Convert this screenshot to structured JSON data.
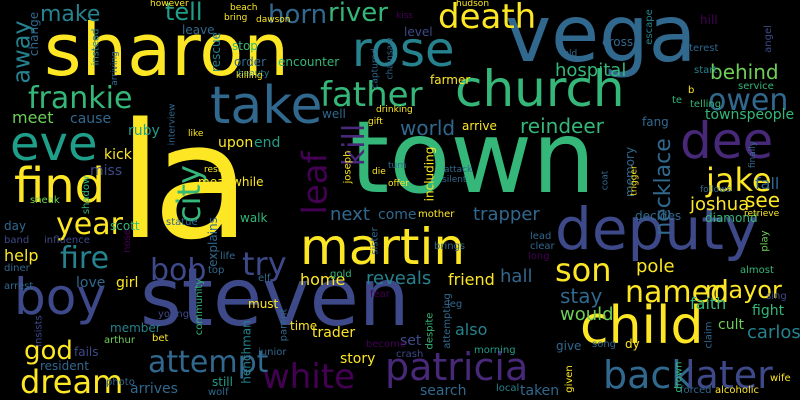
{
  "cloud": {
    "colors": {
      "yellow": "#fde725",
      "yellow_green": "#b5de2b",
      "light_green": "#6ece58",
      "green": "#35b779",
      "teal_green": "#1f9e89",
      "teal": "#26828e",
      "blue": "#31688e",
      "indigo": "#3e4989",
      "purple": "#482878",
      "dark_purple": "#440154"
    },
    "words": {
      "la": "la",
      "town": "town",
      "steven": "steven",
      "vega": "vega",
      "sharon": "sharon",
      "deputy": "deputy",
      "martin": "martin",
      "take": "take",
      "church": "church",
      "child": "child",
      "boy": "boy",
      "rose": "rose",
      "dee": "dee",
      "find": "find",
      "eve": "eve",
      "patricia": "patricia",
      "white": "white",
      "attempt": "attempt",
      "dream": "dream",
      "back": "back",
      "later": "later",
      "son": "son",
      "named": "named",
      "father": "father",
      "death": "death",
      "frankie": "frankie",
      "jake": "jake",
      "owen": "owen",
      "leaf": "leaf",
      "kill": "kill",
      "city": "city",
      "fire": "fire",
      "bob": "bob",
      "try": "try",
      "year": "year",
      "horn": "horn",
      "river": "river",
      "tell": "tell",
      "make": "make",
      "away": "away",
      "hospital": "hospital",
      "behind": "behind",
      "necklace": "necklace",
      "mayor": "mayor",
      "god": "god",
      "reindeer": "reindeer",
      "world": "world",
      "townspeople": "townspeople",
      "see": "see",
      "fall": "fall",
      "joshua": "joshua",
      "next": "next",
      "trapper": "trapper",
      "stay": "stay",
      "would": "would",
      "carlos": "carlos",
      "pole": "pole",
      "reveals": "reveals",
      "hall": "hall",
      "home": "home",
      "friend": "friend",
      "faith": "faith",
      "cult": "cult",
      "fight": "fight",
      "meet": "meet",
      "cause": "cause",
      "ruby": "ruby",
      "kick": "kick",
      "miss": "miss",
      "upon": "upon",
      "end": "end",
      "meanwhile": "meanwhile",
      "walk": "walk",
      "help": "help",
      "love": "love",
      "girl": "girl",
      "member": "member",
      "trader": "trader",
      "story": "story",
      "set": "set",
      "also": "also",
      "search": "search",
      "taken": "taken",
      "arrives": "arrives",
      "still": "still",
      "fails": "fails",
      "resident": "resident",
      "arthur": "arthur",
      "bet": "bet",
      "henchman": "henchman",
      "community": "community",
      "young": "young",
      "must": "must",
      "time": "time",
      "well": "well",
      "arrive": "arrive",
      "fang": "fang",
      "memory": "memory",
      "decides": "decides",
      "diamond": "diamond",
      "including": "including",
      "joseph": "joseph",
      "mother": "mother",
      "come": "come",
      "leave": "leave",
      "change": "change",
      "instead": "instead",
      "rescue": "rescue",
      "stop": "stop",
      "order": "order",
      "encounter": "encounter",
      "farmer": "farmer",
      "level": "level",
      "cross": "cross",
      "escape": "escape",
      "hill": "hill",
      "angel": "angel",
      "service": "service",
      "start": "start",
      "telling": "telling",
      "interest": "interest",
      "te": "te",
      "b": "b",
      "day": "day",
      "scott": "scott",
      "shadow": "shadow",
      "sneak": "sneak",
      "band": "band",
      "influence": "influence",
      "diner": "diner",
      "arrest": "arrest",
      "nose": "nose",
      "explains": "explains",
      "statue": "statue",
      "life": "life",
      "elf": "elf",
      "top": "top",
      "gold": "gold",
      "sister": "sister",
      "brings": "brings",
      "lead": "lead",
      "clear": "clear",
      "long": "long",
      "almost": "almost",
      "play": "play",
      "sing": "sing",
      "leg": "leg",
      "despite": "despite",
      "attempting": "attempting",
      "morning": "morning",
      "give": "give",
      "given": "given",
      "song": "song",
      "dy": "dy",
      "claim": "claim",
      "alcoholic": "alcoholic",
      "forced": "forced",
      "wife": "wife",
      "drown": "drown",
      "local": "local",
      "crash": "crash",
      "become": "become",
      "junior": "junior",
      "parent": "parent",
      "fear": "fear",
      "photo": "photo",
      "wolf": "wolf",
      "insists": "insists",
      "however": "however",
      "bring": "bring",
      "beach": "beach",
      "dawson": "dawson",
      "kiss": "kiss",
      "hudson": "hudson",
      "beauty": "beauty",
      "arriving": "arriving",
      "killing": "killing",
      "rest": "rest",
      "captured": "captured",
      "chainsaw": "chainsaw",
      "told": "told",
      "drinking": "drinking",
      "gift": "gift",
      "like": "like",
      "interview": "interview",
      "die": "die",
      "turn": "turn",
      "offer": "offer",
      "attack": "attack",
      "silent": "silent",
      "coat": "coat",
      "trigger": "trigger",
      "finally": "finally",
      "follows": "follows",
      "retrieve": "retrieve"
    }
  }
}
